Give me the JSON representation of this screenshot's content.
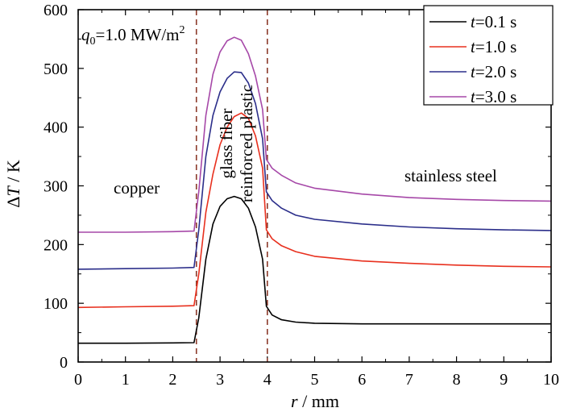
{
  "chart_data": {
    "type": "line",
    "xlabel": {
      "var": "r",
      "unit": " / mm"
    },
    "ylabel": {
      "var": "ΔT",
      "unit": " / K",
      "prefix": "Δ",
      "italic": "T"
    },
    "xlim": [
      0,
      10
    ],
    "ylim": [
      0,
      600
    ],
    "xticks": [
      0,
      1,
      2,
      3,
      4,
      5,
      6,
      7,
      8,
      9,
      10
    ],
    "yticks": [
      0,
      100,
      200,
      300,
      400,
      500,
      600
    ],
    "annotation": {
      "q": "q",
      "sub": "0",
      "text": "=1.0 MW/m",
      "sup": "2"
    },
    "regions": [
      {
        "label": "copper"
      },
      {
        "label": "glass fiber"
      },
      {
        "label": "reinforced plastic"
      },
      {
        "label": "stainless steel"
      }
    ],
    "boundaries_mm": [
      2.5,
      4.0
    ],
    "series": [
      {
        "name": "t=0.1 s",
        "var": "t",
        "text": "=0.1 s",
        "color": "#000000",
        "points": [
          [
            0,
            32
          ],
          [
            1,
            32
          ],
          [
            2,
            32.5
          ],
          [
            2.45,
            33
          ],
          [
            2.55,
            75
          ],
          [
            2.7,
            175
          ],
          [
            2.85,
            235
          ],
          [
            3.0,
            265
          ],
          [
            3.15,
            278
          ],
          [
            3.3,
            282
          ],
          [
            3.45,
            278
          ],
          [
            3.6,
            262
          ],
          [
            3.75,
            230
          ],
          [
            3.9,
            175
          ],
          [
            3.98,
            95
          ],
          [
            4.1,
            80
          ],
          [
            4.3,
            72
          ],
          [
            4.6,
            68
          ],
          [
            5,
            66
          ],
          [
            6,
            65
          ],
          [
            7,
            65
          ],
          [
            8,
            65
          ],
          [
            9,
            65
          ],
          [
            10,
            65
          ]
        ]
      },
      {
        "name": "t=1.0 s",
        "var": "t",
        "text": "=1.0 s",
        "color": "#e8301e",
        "points": [
          [
            0,
            93
          ],
          [
            1,
            94
          ],
          [
            2,
            95
          ],
          [
            2.45,
            96
          ],
          [
            2.55,
            150
          ],
          [
            2.7,
            255
          ],
          [
            2.85,
            320
          ],
          [
            3.0,
            370
          ],
          [
            3.15,
            400
          ],
          [
            3.3,
            418
          ],
          [
            3.45,
            424
          ],
          [
            3.6,
            415
          ],
          [
            3.75,
            385
          ],
          [
            3.9,
            330
          ],
          [
            3.98,
            225
          ],
          [
            4.1,
            210
          ],
          [
            4.3,
            198
          ],
          [
            4.6,
            188
          ],
          [
            5,
            180
          ],
          [
            6,
            172
          ],
          [
            7,
            168
          ],
          [
            8,
            165
          ],
          [
            9,
            163
          ],
          [
            10,
            162
          ]
        ]
      },
      {
        "name": "t=2.0 s",
        "var": "t",
        "text": "=2.0 s",
        "color": "#2b2e8a",
        "points": [
          [
            0,
            158
          ],
          [
            1,
            159
          ],
          [
            2,
            160
          ],
          [
            2.45,
            161
          ],
          [
            2.55,
            225
          ],
          [
            2.7,
            350
          ],
          [
            2.85,
            420
          ],
          [
            3.0,
            460
          ],
          [
            3.15,
            483
          ],
          [
            3.3,
            494
          ],
          [
            3.45,
            493
          ],
          [
            3.6,
            475
          ],
          [
            3.75,
            440
          ],
          [
            3.9,
            380
          ],
          [
            3.98,
            290
          ],
          [
            4.1,
            275
          ],
          [
            4.3,
            262
          ],
          [
            4.6,
            250
          ],
          [
            5,
            243
          ],
          [
            6,
            235
          ],
          [
            7,
            230
          ],
          [
            8,
            227
          ],
          [
            9,
            225
          ],
          [
            10,
            224
          ]
        ]
      },
      {
        "name": "t=3.0 s",
        "var": "t",
        "text": "=3.0 s",
        "color": "#a648a8",
        "points": [
          [
            0,
            221
          ],
          [
            1,
            221
          ],
          [
            2,
            222
          ],
          [
            2.45,
            223
          ],
          [
            2.55,
            290
          ],
          [
            2.7,
            420
          ],
          [
            2.85,
            490
          ],
          [
            3.0,
            528
          ],
          [
            3.15,
            547
          ],
          [
            3.3,
            553
          ],
          [
            3.45,
            548
          ],
          [
            3.6,
            525
          ],
          [
            3.75,
            487
          ],
          [
            3.9,
            430
          ],
          [
            3.98,
            345
          ],
          [
            4.1,
            330
          ],
          [
            4.3,
            318
          ],
          [
            4.6,
            305
          ],
          [
            5,
            296
          ],
          [
            6,
            286
          ],
          [
            7,
            280
          ],
          [
            8,
            277
          ],
          [
            9,
            275
          ],
          [
            10,
            274
          ]
        ]
      }
    ]
  }
}
